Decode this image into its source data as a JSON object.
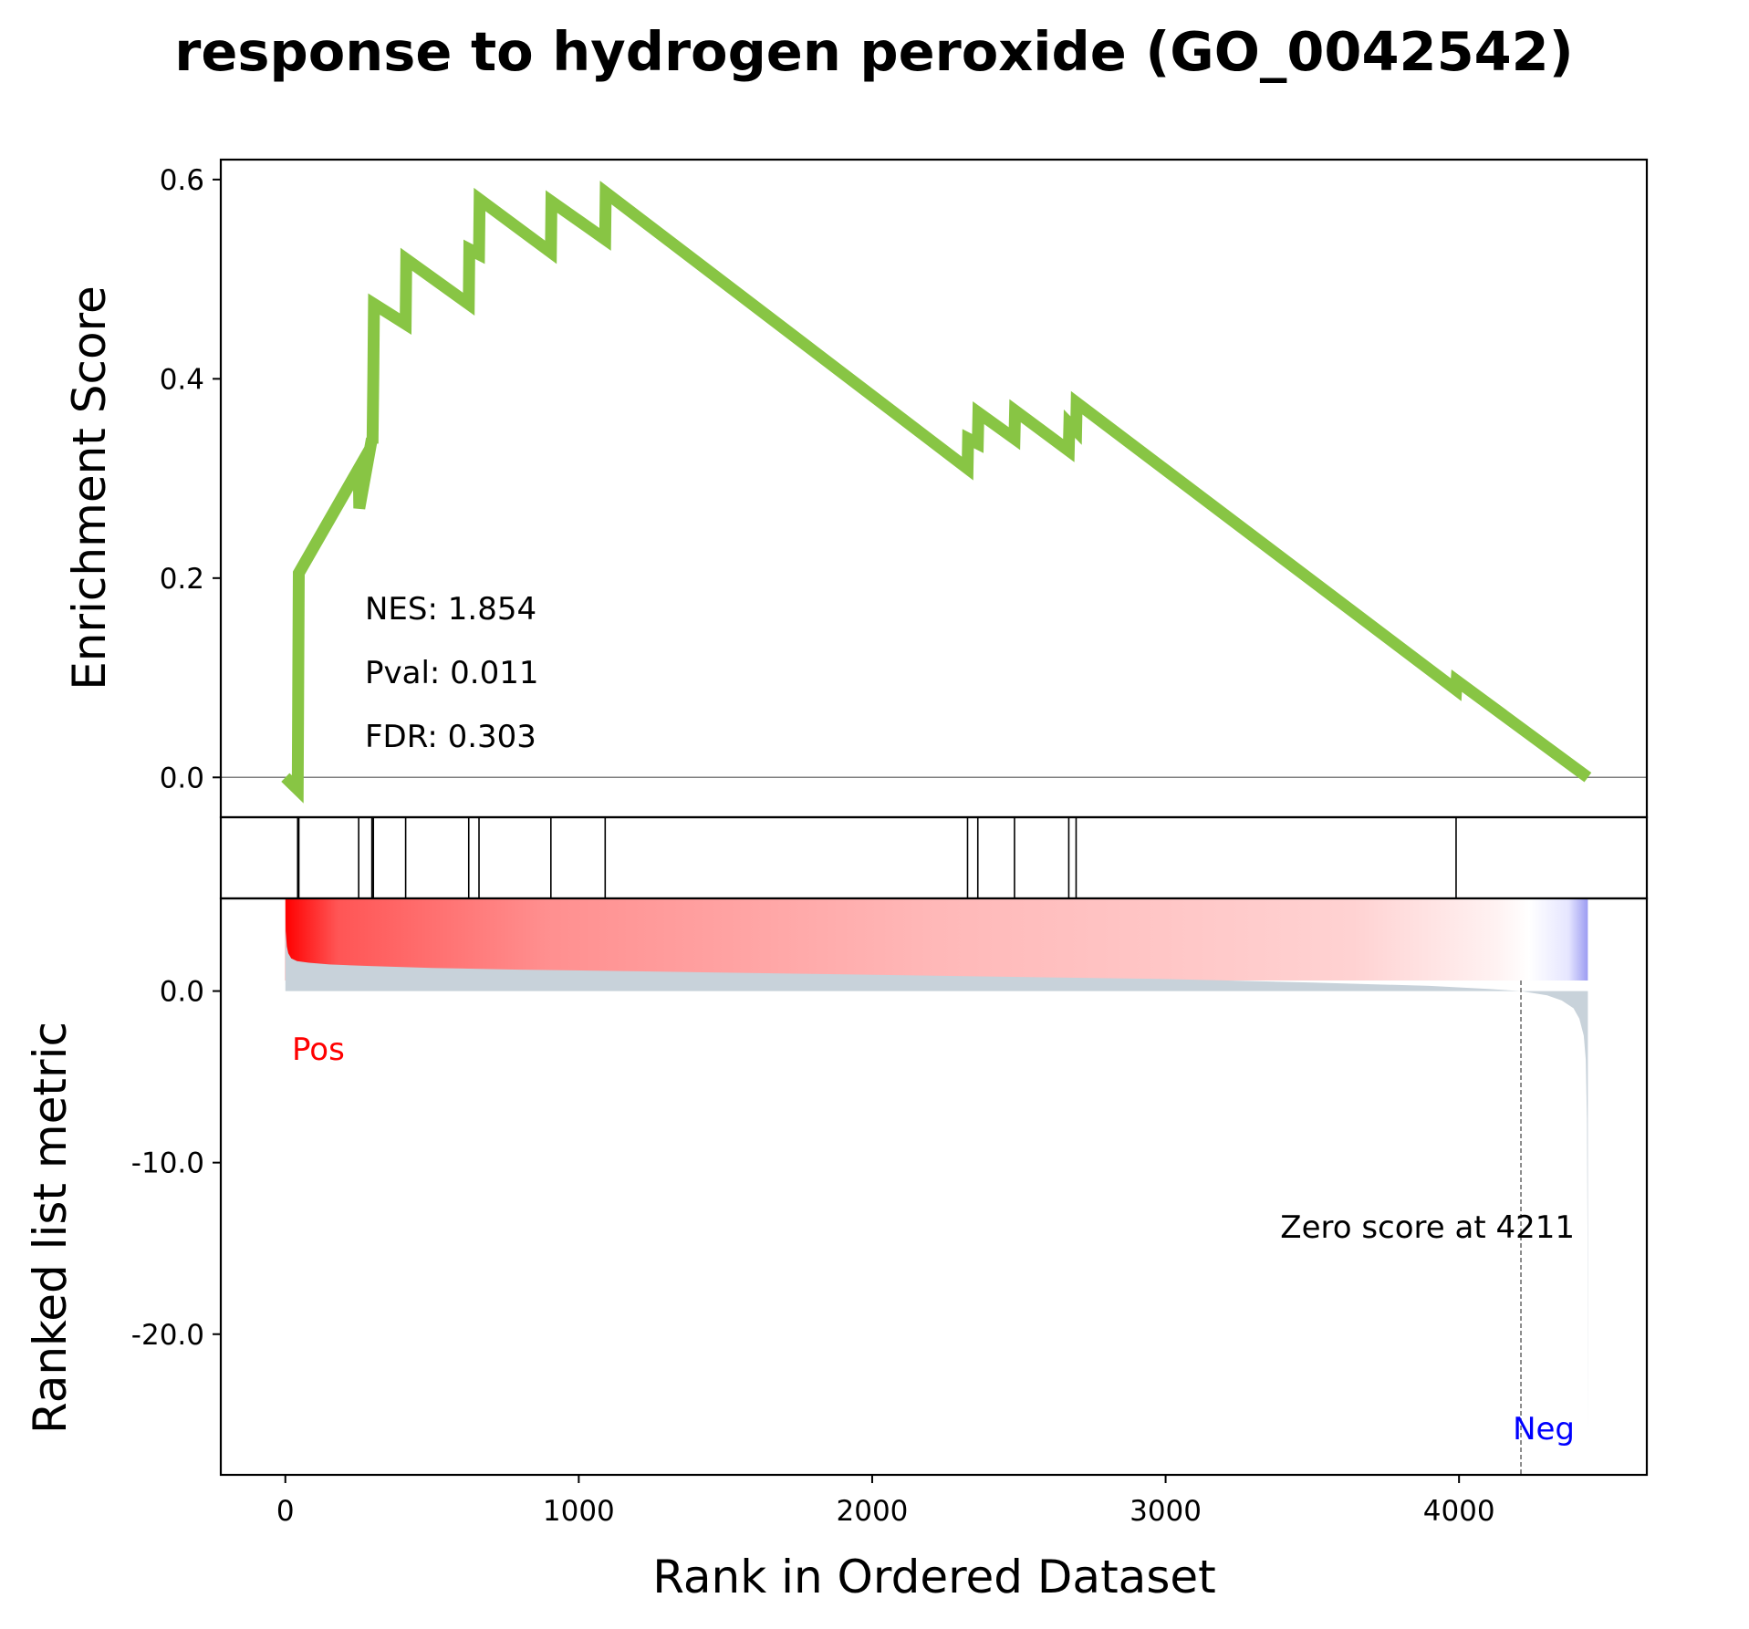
{
  "chart_data": {
    "type": "line",
    "title": "response to hydrogen peroxide (GO_0042542)",
    "xlabel": "Rank in Ordered Dataset",
    "ylabel_top": "Enrichment Score",
    "ylabel_bottom": "Ranked list metric",
    "xlim": [
      -220,
      4640
    ],
    "x_ticks": [
      0,
      1000,
      2000,
      3000,
      4000
    ],
    "x_tick_labels": [
      "0",
      "1000",
      "2000",
      "3000",
      "4000"
    ],
    "es_ylim": [
      -0.04,
      0.62
    ],
    "es_ticks": [
      0.0,
      0.2,
      0.4,
      0.6
    ],
    "es_tick_labels": [
      "0.0",
      "0.2",
      "0.4",
      "0.6"
    ],
    "metric_ylim": [
      -28.2,
      5.4
    ],
    "metric_ticks": [
      0,
      -10,
      -20
    ],
    "metric_tick_labels": [
      "0.0",
      "-10.0",
      "-20.0"
    ],
    "n_genes": 4439,
    "line_color": "#88c544",
    "fill_color": "#c8d2da",
    "pos_color": "#ff0000",
    "neg_color": "#0000ff",
    "es_curve": {
      "x": [
        0,
        42,
        42,
        44,
        44,
        46,
        46,
        250,
        250,
        252,
        252,
        295,
        295,
        297,
        297,
        300,
        300,
        302,
        302,
        410,
        410,
        412,
        412,
        625,
        625,
        627,
        627,
        660,
        660,
        662,
        662,
        905,
        905,
        907,
        907,
        1090,
        1090,
        1092,
        1092,
        2325,
        2325,
        2327,
        2327,
        2360,
        2360,
        2362,
        2362,
        2485,
        2485,
        2487,
        2487,
        2670,
        2670,
        2672,
        2672,
        2695,
        2695,
        2697,
        2697,
        3990,
        3990,
        3992,
        3992,
        4439
      ],
      "y": [
        0.0,
        -0.012,
        -0.012,
        0.1,
        0.1,
        0.205,
        0.205,
        0.31,
        0.31,
        0.27,
        0.27,
        0.34,
        0.34,
        0.335,
        0.335,
        0.405,
        0.405,
        0.475,
        0.475,
        0.455,
        0.455,
        0.52,
        0.52,
        0.475,
        0.475,
        0.53,
        0.53,
        0.525,
        0.525,
        0.58,
        0.58,
        0.527,
        0.527,
        0.578,
        0.578,
        0.54,
        0.54,
        0.587,
        0.587,
        0.31,
        0.31,
        0.34,
        0.34,
        0.335,
        0.335,
        0.366,
        0.366,
        0.34,
        0.34,
        0.368,
        0.368,
        0.328,
        0.328,
        0.355,
        0.355,
        0.348,
        0.348,
        0.376,
        0.376,
        0.088,
        0.088,
        0.097,
        0.097,
        0.0
      ]
    },
    "hit_positions": [
      42,
      44,
      46,
      250,
      295,
      300,
      410,
      625,
      660,
      905,
      1090,
      2325,
      2360,
      2485,
      2670,
      2695,
      3990
    ],
    "ranked_metric": {
      "x": [
        0,
        1,
        5,
        10,
        20,
        40,
        80,
        150,
        300,
        500,
        800,
        1200,
        1800,
        2400,
        3000,
        3500,
        3900,
        4100,
        4211,
        4300,
        4350,
        4390,
        4410,
        4425,
        4432,
        4436,
        4438,
        4439
      ],
      "y": [
        5.3,
        3.5,
        2.6,
        2.2,
        1.9,
        1.75,
        1.65,
        1.55,
        1.45,
        1.35,
        1.25,
        1.15,
        1.0,
        0.85,
        0.7,
        0.5,
        0.3,
        0.12,
        0.0,
        -0.25,
        -0.55,
        -1.0,
        -1.6,
        -2.6,
        -4.0,
        -7.5,
        -14.0,
        -26.5
      ]
    },
    "zero_score_position": 4211,
    "annotations": {
      "nes": "NES: 1.854",
      "pval": "Pval: 0.011",
      "fdr": "FDR: 0.303",
      "zero_score": "Zero score at 4211",
      "pos": "Pos",
      "neg": "Neg"
    }
  }
}
